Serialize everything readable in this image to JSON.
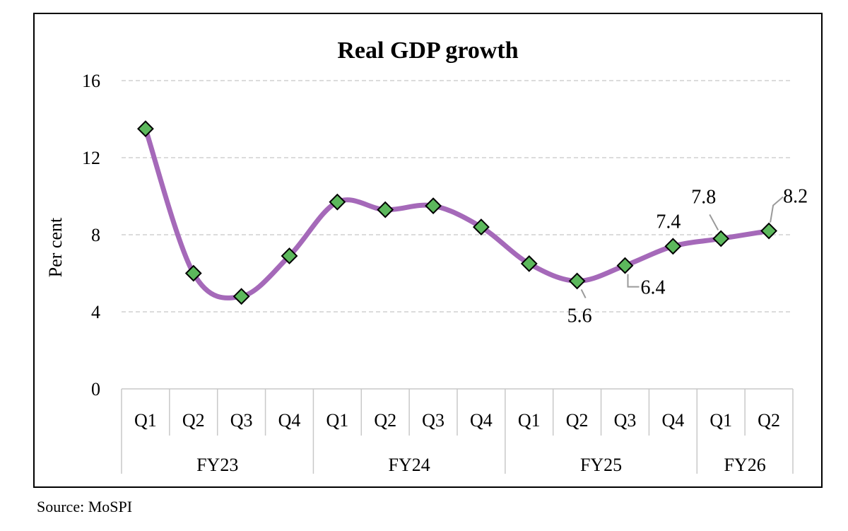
{
  "chart_data": {
    "type": "line",
    "title": "Real GDP growth",
    "ylabel": "Per cent",
    "xlabel": "",
    "ylim": [
      0,
      16
    ],
    "yticks": [
      0,
      4,
      8,
      12,
      16
    ],
    "grid": true,
    "smooth": true,
    "categories": [
      "Q1",
      "Q2",
      "Q3",
      "Q4",
      "Q1",
      "Q2",
      "Q3",
      "Q4",
      "Q1",
      "Q2",
      "Q3",
      "Q4",
      "Q1",
      "Q2"
    ],
    "groups": [
      {
        "label": "FY23",
        "count": 4
      },
      {
        "label": "FY24",
        "count": 4
      },
      {
        "label": "FY25",
        "count": 4
      },
      {
        "label": "FY26",
        "count": 2
      }
    ],
    "series": [
      {
        "values": [
          13.5,
          6.0,
          4.8,
          6.9,
          9.7,
          9.3,
          9.5,
          8.4,
          6.5,
          5.6,
          6.4,
          7.4,
          7.8,
          8.2
        ],
        "line_color": "#a569b9",
        "marker_color": "#5cb85c"
      }
    ],
    "annotations": [
      {
        "index": 9,
        "text": "5.6",
        "placement": "below-right"
      },
      {
        "index": 10,
        "text": "6.4",
        "placement": "below-right"
      },
      {
        "index": 11,
        "text": "7.4",
        "placement": "above"
      },
      {
        "index": 12,
        "text": "7.8",
        "placement": "above-left"
      },
      {
        "index": 13,
        "text": "8.2",
        "placement": "above-right"
      }
    ]
  },
  "source": "Source: MoSPI"
}
